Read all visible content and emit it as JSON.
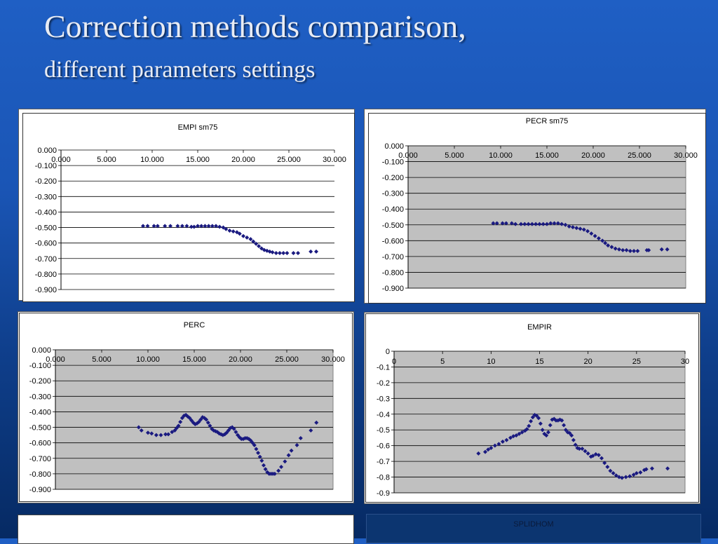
{
  "slide": {
    "title": "Correction methods comparison,",
    "subtitle": "different parameters settings"
  },
  "chart_data": [
    {
      "id": "empi-sm75",
      "type": "scatter",
      "title": "EMPI sm75",
      "xlim": [
        0,
        30
      ],
      "ylim": [
        -0.9,
        0
      ],
      "x_ticks": [
        "0.000",
        "5.000",
        "10.000",
        "15.000",
        "20.000",
        "25.000",
        "30.000"
      ],
      "y_ticks": [
        "0.000",
        "-0.100",
        "-0.200",
        "-0.300",
        "-0.400",
        "-0.500",
        "-0.600",
        "-0.700",
        "-0.800",
        "-0.900"
      ],
      "plot_area": "white",
      "grid": true,
      "points": [
        [
          9,
          -0.49
        ],
        [
          9.5,
          -0.49
        ],
        [
          10.2,
          -0.49
        ],
        [
          10.6,
          -0.49
        ],
        [
          11.4,
          -0.49
        ],
        [
          12,
          -0.49
        ],
        [
          12.8,
          -0.49
        ],
        [
          13.3,
          -0.49
        ],
        [
          13.8,
          -0.49
        ],
        [
          14.3,
          -0.495
        ],
        [
          14.6,
          -0.495
        ],
        [
          15,
          -0.49
        ],
        [
          15.4,
          -0.49
        ],
        [
          15.8,
          -0.49
        ],
        [
          16.2,
          -0.49
        ],
        [
          16.6,
          -0.49
        ],
        [
          17,
          -0.49
        ],
        [
          17.4,
          -0.495
        ],
        [
          17.8,
          -0.5
        ],
        [
          18.1,
          -0.51
        ],
        [
          18.5,
          -0.52
        ],
        [
          18.9,
          -0.525
        ],
        [
          19.3,
          -0.53
        ],
        [
          19.6,
          -0.54
        ],
        [
          20,
          -0.555
        ],
        [
          20.4,
          -0.565
        ],
        [
          20.8,
          -0.575
        ],
        [
          21.1,
          -0.59
        ],
        [
          21.4,
          -0.605
        ],
        [
          21.7,
          -0.62
        ],
        [
          22,
          -0.635
        ],
        [
          22.3,
          -0.645
        ],
        [
          22.6,
          -0.65
        ],
        [
          22.9,
          -0.655
        ],
        [
          23.2,
          -0.66
        ],
        [
          23.6,
          -0.665
        ],
        [
          24,
          -0.665
        ],
        [
          24.4,
          -0.665
        ],
        [
          24.8,
          -0.665
        ],
        [
          25.5,
          -0.665
        ],
        [
          26,
          -0.665
        ],
        [
          27.4,
          -0.655
        ],
        [
          28,
          -0.655
        ]
      ]
    },
    {
      "id": "pecr-sm75",
      "type": "scatter",
      "title": "PECR sm75",
      "xlim": [
        0,
        30
      ],
      "ylim": [
        -0.9,
        0
      ],
      "x_ticks": [
        "0.000",
        "5.000",
        "10.000",
        "15.000",
        "20.000",
        "25.000",
        "30.000"
      ],
      "y_ticks": [
        "0.000",
        "-0.100",
        "-0.200",
        "-0.300",
        "-0.400",
        "-0.500",
        "-0.600",
        "-0.700",
        "-0.800",
        "-0.900"
      ],
      "plot_area": "gray",
      "grid": true,
      "points": [
        [
          9.2,
          -0.49
        ],
        [
          9.6,
          -0.49
        ],
        [
          10.2,
          -0.49
        ],
        [
          10.6,
          -0.49
        ],
        [
          11.2,
          -0.49
        ],
        [
          11.6,
          -0.495
        ],
        [
          12.2,
          -0.495
        ],
        [
          12.6,
          -0.495
        ],
        [
          13,
          -0.495
        ],
        [
          13.4,
          -0.495
        ],
        [
          13.8,
          -0.495
        ],
        [
          14.2,
          -0.495
        ],
        [
          14.6,
          -0.495
        ],
        [
          15,
          -0.495
        ],
        [
          15.4,
          -0.49
        ],
        [
          15.8,
          -0.49
        ],
        [
          16.2,
          -0.49
        ],
        [
          16.6,
          -0.495
        ],
        [
          17,
          -0.5
        ],
        [
          17.4,
          -0.51
        ],
        [
          17.8,
          -0.515
        ],
        [
          18.2,
          -0.52
        ],
        [
          18.6,
          -0.525
        ],
        [
          19,
          -0.53
        ],
        [
          19.4,
          -0.54
        ],
        [
          19.8,
          -0.555
        ],
        [
          20.2,
          -0.57
        ],
        [
          20.6,
          -0.585
        ],
        [
          21,
          -0.6
        ],
        [
          21.3,
          -0.615
        ],
        [
          21.6,
          -0.63
        ],
        [
          22,
          -0.64
        ],
        [
          22.4,
          -0.65
        ],
        [
          22.8,
          -0.655
        ],
        [
          23.2,
          -0.66
        ],
        [
          23.6,
          -0.66
        ],
        [
          24,
          -0.665
        ],
        [
          24.4,
          -0.665
        ],
        [
          24.8,
          -0.665
        ],
        [
          25.8,
          -0.66
        ],
        [
          26,
          -0.66
        ],
        [
          27.4,
          -0.655
        ],
        [
          28,
          -0.655
        ]
      ]
    },
    {
      "id": "perc",
      "type": "scatter",
      "title": "PERC",
      "xlim": [
        0,
        30
      ],
      "ylim": [
        -0.9,
        0
      ],
      "x_ticks": [
        "0.000",
        "5.000",
        "10.000",
        "15.000",
        "20.000",
        "25.000",
        "30.000"
      ],
      "y_ticks": [
        "0.000",
        "-0.100",
        "-0.200",
        "-0.300",
        "-0.400",
        "-0.500",
        "-0.600",
        "-0.700",
        "-0.800",
        "-0.900"
      ],
      "plot_area": "gray",
      "grid": true,
      "points": [
        [
          9,
          -0.5
        ],
        [
          9.3,
          -0.52
        ],
        [
          10,
          -0.535
        ],
        [
          10.4,
          -0.54
        ],
        [
          10.9,
          -0.55
        ],
        [
          11.4,
          -0.55
        ],
        [
          11.9,
          -0.545
        ],
        [
          12.2,
          -0.545
        ],
        [
          12.6,
          -0.53
        ],
        [
          12.9,
          -0.52
        ],
        [
          13.1,
          -0.505
        ],
        [
          13.3,
          -0.49
        ],
        [
          13.5,
          -0.465
        ],
        [
          13.7,
          -0.44
        ],
        [
          13.9,
          -0.425
        ],
        [
          14.1,
          -0.42
        ],
        [
          14.3,
          -0.43
        ],
        [
          14.5,
          -0.44
        ],
        [
          14.7,
          -0.455
        ],
        [
          14.9,
          -0.47
        ],
        [
          15.1,
          -0.48
        ],
        [
          15.3,
          -0.475
        ],
        [
          15.5,
          -0.465
        ],
        [
          15.7,
          -0.45
        ],
        [
          15.9,
          -0.435
        ],
        [
          16.1,
          -0.44
        ],
        [
          16.3,
          -0.45
        ],
        [
          16.5,
          -0.47
        ],
        [
          16.7,
          -0.49
        ],
        [
          16.9,
          -0.51
        ],
        [
          17.1,
          -0.52
        ],
        [
          17.3,
          -0.525
        ],
        [
          17.5,
          -0.53
        ],
        [
          17.7,
          -0.54
        ],
        [
          17.9,
          -0.545
        ],
        [
          18.1,
          -0.55
        ],
        [
          18.3,
          -0.545
        ],
        [
          18.5,
          -0.535
        ],
        [
          18.7,
          -0.52
        ],
        [
          18.9,
          -0.505
        ],
        [
          19.1,
          -0.5
        ],
        [
          19.3,
          -0.51
        ],
        [
          19.5,
          -0.53
        ],
        [
          19.7,
          -0.55
        ],
        [
          19.9,
          -0.565
        ],
        [
          20.1,
          -0.575
        ],
        [
          20.3,
          -0.575
        ],
        [
          20.5,
          -0.57
        ],
        [
          20.7,
          -0.57
        ],
        [
          20.9,
          -0.575
        ],
        [
          21.1,
          -0.585
        ],
        [
          21.3,
          -0.6
        ],
        [
          21.5,
          -0.615
        ],
        [
          21.7,
          -0.64
        ],
        [
          21.9,
          -0.665
        ],
        [
          22.1,
          -0.69
        ],
        [
          22.3,
          -0.715
        ],
        [
          22.5,
          -0.745
        ],
        [
          22.7,
          -0.77
        ],
        [
          22.9,
          -0.79
        ],
        [
          23.1,
          -0.8
        ],
        [
          23.3,
          -0.8
        ],
        [
          23.5,
          -0.8
        ],
        [
          23.7,
          -0.8
        ],
        [
          24.1,
          -0.78
        ],
        [
          24.4,
          -0.755
        ],
        [
          24.8,
          -0.72
        ],
        [
          25.2,
          -0.68
        ],
        [
          25.5,
          -0.65
        ],
        [
          26.1,
          -0.615
        ],
        [
          26.5,
          -0.57
        ],
        [
          27.6,
          -0.52
        ],
        [
          28.2,
          -0.47
        ]
      ]
    },
    {
      "id": "empir",
      "type": "scatter",
      "title": "EMPIR",
      "xlim": [
        0,
        30
      ],
      "ylim": [
        -0.9,
        0
      ],
      "x_ticks": [
        "0",
        "5",
        "10",
        "15",
        "20",
        "25",
        "30"
      ],
      "y_ticks": [
        "0",
        "-0.1",
        "-0.2",
        "-0.3",
        "-0.4",
        "-0.5",
        "-0.6",
        "-0.7",
        "-0.8",
        "-0.9"
      ],
      "plot_area": "gray",
      "grid": true,
      "points": [
        [
          8.7,
          -0.65
        ],
        [
          9.4,
          -0.64
        ],
        [
          9.7,
          -0.625
        ],
        [
          10,
          -0.615
        ],
        [
          10.4,
          -0.6
        ],
        [
          10.8,
          -0.59
        ],
        [
          11.2,
          -0.575
        ],
        [
          11.6,
          -0.565
        ],
        [
          12,
          -0.55
        ],
        [
          12.3,
          -0.54
        ],
        [
          12.6,
          -0.535
        ],
        [
          12.9,
          -0.525
        ],
        [
          13.2,
          -0.515
        ],
        [
          13.5,
          -0.505
        ],
        [
          13.7,
          -0.495
        ],
        [
          13.9,
          -0.475
        ],
        [
          14.1,
          -0.445
        ],
        [
          14.3,
          -0.42
        ],
        [
          14.5,
          -0.405
        ],
        [
          14.7,
          -0.41
        ],
        [
          14.9,
          -0.425
        ],
        [
          15.1,
          -0.46
        ],
        [
          15.3,
          -0.5
        ],
        [
          15.5,
          -0.525
        ],
        [
          15.7,
          -0.535
        ],
        [
          15.9,
          -0.515
        ],
        [
          16.1,
          -0.47
        ],
        [
          16.3,
          -0.435
        ],
        [
          16.5,
          -0.43
        ],
        [
          16.7,
          -0.44
        ],
        [
          16.9,
          -0.44
        ],
        [
          17.1,
          -0.435
        ],
        [
          17.3,
          -0.44
        ],
        [
          17.5,
          -0.47
        ],
        [
          17.7,
          -0.5
        ],
        [
          17.9,
          -0.515
        ],
        [
          18.1,
          -0.52
        ],
        [
          18.3,
          -0.535
        ],
        [
          18.5,
          -0.565
        ],
        [
          18.7,
          -0.595
        ],
        [
          18.9,
          -0.615
        ],
        [
          19.1,
          -0.62
        ],
        [
          19.4,
          -0.62
        ],
        [
          19.7,
          -0.635
        ],
        [
          20,
          -0.65
        ],
        [
          20.3,
          -0.67
        ],
        [
          20.5,
          -0.665
        ],
        [
          20.8,
          -0.655
        ],
        [
          21.1,
          -0.66
        ],
        [
          21.4,
          -0.68
        ],
        [
          21.7,
          -0.71
        ],
        [
          22,
          -0.735
        ],
        [
          22.3,
          -0.76
        ],
        [
          22.6,
          -0.775
        ],
        [
          22.9,
          -0.79
        ],
        [
          23.2,
          -0.8
        ],
        [
          23.5,
          -0.805
        ],
        [
          23.9,
          -0.8
        ],
        [
          24.3,
          -0.795
        ],
        [
          24.7,
          -0.785
        ],
        [
          25,
          -0.775
        ],
        [
          25.4,
          -0.77
        ],
        [
          25.8,
          -0.755
        ],
        [
          26,
          -0.75
        ],
        [
          26.6,
          -0.745
        ],
        [
          28.2,
          -0.745
        ]
      ]
    }
  ],
  "extra_panels": {
    "splidhom_title": "SPLIDHOM"
  }
}
